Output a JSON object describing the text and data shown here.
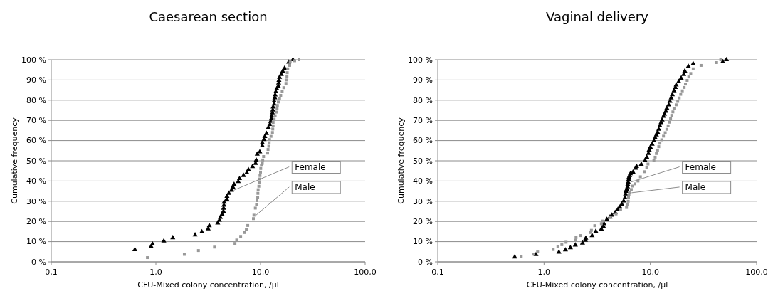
{
  "chart_data": [
    {
      "type": "scatter",
      "title": "Caesarean section",
      "xlabel": "CFU-Mixed colony concentration, /µl",
      "ylabel": "Cumulative frequency",
      "log": "x",
      "grid": "y",
      "legend": false,
      "xlim": [
        0.1,
        100
      ],
      "xticks": [
        {
          "value": 0.1,
          "label": "0,1"
        },
        {
          "value": 1,
          "label": "1,0"
        },
        {
          "value": 10,
          "label": "10,0"
        },
        {
          "value": 100,
          "label": "100,0"
        }
      ],
      "ylim": [
        0,
        100
      ],
      "yticks": [
        {
          "value": 0,
          "label": "0 %"
        },
        {
          "value": 10,
          "label": "10 %"
        },
        {
          "value": 20,
          "label": "20 %"
        },
        {
          "value": 30,
          "label": "30 %"
        },
        {
          "value": 40,
          "label": "40 %"
        },
        {
          "value": 50,
          "label": "50 %"
        },
        {
          "value": 60,
          "label": "60 %"
        },
        {
          "value": 70,
          "label": "70 %"
        },
        {
          "value": 80,
          "label": "80 %"
        },
        {
          "value": 90,
          "label": "90 %"
        },
        {
          "value": 100,
          "label": "100 %"
        }
      ],
      "series": [
        {
          "name": "Female",
          "color": "#000000",
          "marker": "triangle",
          "x": [
            0.63,
            0.9,
            0.93,
            1.19,
            1.45,
            2.37,
            2.75,
            3.16,
            3.24,
            3.9,
            4.05,
            4.13,
            4.29,
            4.42,
            4.44,
            4.47,
            4.49,
            4.76,
            4.78,
            4.98,
            5.28,
            5.44,
            5.59,
            6.13,
            6.3,
            6.88,
            7.4,
            7.67,
            8.38,
            8.97,
            9.1,
            9.3,
            9.84,
            10.4,
            10.4,
            10.8,
            11.0,
            11.4,
            11.9,
            12.3,
            12.5,
            12.7,
            12.8,
            13.0,
            13.1,
            13.2,
            13.5,
            13.5,
            13.7,
            13.8,
            14.0,
            14.3,
            14.8,
            14.9,
            15.0,
            15.2,
            15.8,
            16.3,
            17.0,
            18.6,
            20.4
          ],
          "values": [
            6.0,
            7.6,
            8.8,
            10.3,
            11.9,
            13.3,
            14.8,
            16.3,
            17.9,
            19.2,
            20.6,
            22.0,
            23.5,
            25.0,
            26.5,
            28.0,
            29.5,
            31.0,
            32.4,
            33.9,
            35.4,
            37.0,
            38.3,
            39.7,
            41.2,
            42.7,
            44.1,
            45.6,
            47.1,
            48.7,
            50.3,
            53.3,
            54.4,
            57.4,
            58.9,
            60.5,
            62.0,
            63.5,
            66.5,
            68.0,
            69.5,
            70.9,
            72.2,
            73.7,
            75.1,
            76.6,
            78.1,
            79.6,
            81.2,
            82.6,
            84.2,
            85.7,
            86.9,
            88.5,
            89.8,
            91.3,
            92.7,
            94.3,
            95.8,
            98.8,
            100
          ]
        },
        {
          "name": "Male",
          "color": "#999999",
          "marker": "square",
          "x": [
            0.83,
            1.87,
            2.55,
            3.63,
            5.7,
            5.92,
            6.46,
            7.02,
            7.32,
            7.55,
            8.55,
            8.65,
            8.92,
            9.16,
            9.25,
            9.4,
            9.44,
            9.49,
            9.64,
            9.74,
            9.84,
            9.89,
            10.0,
            10.05,
            10.2,
            10.4,
            10.5,
            10.7,
            11.7,
            11.8,
            12.0,
            12.1,
            12.2,
            12.6,
            13.0,
            13.1,
            13.2,
            13.2,
            13.5,
            13.8,
            14.2,
            14.4,
            14.5,
            14.8,
            15.2,
            15.6,
            16.1,
            16.7,
            17.5,
            17.7,
            17.9,
            18.0,
            18.2,
            19.0,
            19.2,
            21.2,
            23.3
          ],
          "values": [
            2.1,
            3.7,
            5.6,
            7.3,
            9.1,
            10.8,
            12.6,
            14.5,
            16.2,
            18.0,
            21.4,
            23.1,
            26.6,
            28.5,
            30.3,
            32.0,
            33.9,
            35.7,
            37.4,
            39.2,
            41.0,
            42.7,
            44.4,
            46.2,
            47.8,
            48.7,
            50.4,
            52.1,
            53.8,
            55.6,
            57.2,
            58.9,
            60.5,
            62.1,
            64.0,
            65.7,
            67.3,
            69.0,
            70.6,
            72.3,
            74.1,
            75.8,
            77.4,
            79.1,
            80.7,
            82.4,
            84.2,
            86.2,
            88.3,
            90.0,
            91.7,
            93.6,
            95.5,
            97.2,
            98.9,
            99.5,
            100
          ]
        }
      ]
    },
    {
      "type": "scatter",
      "title": "Vaginal delivery",
      "xlabel": "CFU-Mixed colony concentration, /µl",
      "ylabel": "Cumulative frequency",
      "log": "x",
      "grid": "y",
      "legend": false,
      "xlim": [
        0.1,
        100
      ],
      "xticks": [
        {
          "value": 0.1,
          "label": "0,1"
        },
        {
          "value": 1,
          "label": "1,0"
        },
        {
          "value": 10,
          "label": "10,0"
        },
        {
          "value": 100,
          "label": "100,0"
        }
      ],
      "ylim": [
        0,
        100
      ],
      "yticks": [
        {
          "value": 0,
          "label": "0 %"
        },
        {
          "value": 10,
          "label": "10 %"
        },
        {
          "value": 20,
          "label": "20 %"
        },
        {
          "value": 30,
          "label": "30 %"
        },
        {
          "value": 40,
          "label": "40 %"
        },
        {
          "value": 50,
          "label": "50 %"
        },
        {
          "value": 60,
          "label": "60 %"
        },
        {
          "value": 70,
          "label": "70 %"
        },
        {
          "value": 80,
          "label": "80 %"
        },
        {
          "value": 90,
          "label": "90 %"
        },
        {
          "value": 100,
          "label": "100 %"
        }
      ],
      "series": [
        {
          "name": "Female",
          "color": "#000000",
          "marker": "triangle",
          "x": [
            0.53,
            0.84,
            1.38,
            1.59,
            1.77,
            1.97,
            2.3,
            2.45,
            2.47,
            2.83,
            3.07,
            3.46,
            3.61,
            3.66,
            3.9,
            4.17,
            4.34,
            4.67,
            4.96,
            5.17,
            5.39,
            5.61,
            5.77,
            5.85,
            5.91,
            6.01,
            6.1,
            6.13,
            6.19,
            6.26,
            6.29,
            6.39,
            6.49,
            6.87,
            7.31,
            7.42,
            8.22,
            8.93,
            9.25,
            9.6,
            9.75,
            10.0,
            10.4,
            10.8,
            11.1,
            11.4,
            11.7,
            12.0,
            12.3,
            12.6,
            12.9,
            13.3,
            13.6,
            14.0,
            14.3,
            14.9,
            15.3,
            15.7,
            16.1,
            16.7,
            17.2,
            17.5,
            18.5,
            19.5,
            20.6,
            21.1,
            22.8,
            25.3,
            48,
            52
          ],
          "values": [
            2.4,
            3.6,
            4.8,
            5.9,
            7.0,
            8.3,
            9.3,
            10.7,
            11.7,
            13.0,
            15.1,
            16.2,
            17.6,
            18.9,
            21.0,
            22.1,
            23.1,
            24.4,
            26.0,
            27.1,
            28.5,
            30.1,
            31.7,
            33.6,
            34.9,
            35.9,
            37.1,
            38.3,
            39.4,
            40.8,
            41.8,
            42.7,
            43.6,
            44.4,
            46.3,
            47.2,
            48.3,
            50.1,
            51.8,
            53.6,
            55.3,
            56.7,
            58.2,
            59.9,
            61.4,
            62.8,
            64.1,
            65.6,
            67.3,
            68.9,
            70.2,
            72.0,
            73.1,
            74.5,
            76.0,
            77.7,
            79.4,
            81.1,
            82.7,
            84.6,
            86.3,
            87.5,
            89.2,
            90.9,
            92.7,
            94.4,
            96.7,
            98.0,
            99,
            100
          ]
        },
        {
          "name": "Male",
          "color": "#999999",
          "marker": "square",
          "x": [
            0.61,
            0.79,
            0.87,
            1.22,
            1.35,
            1.47,
            1.61,
            1.97,
            2.0,
            2.21,
            2.73,
            2.79,
            3.0,
            3.46,
            3.53,
            4.17,
            4.76,
            5.25,
            5.97,
            6.04,
            6.19,
            6.23,
            6.29,
            6.36,
            6.62,
            6.8,
            7.16,
            7.65,
            8.06,
            8.75,
            9.26,
            9.5,
            10.8,
            11.1,
            11.4,
            11.7,
            12.0,
            12.3,
            12.8,
            13.3,
            13.8,
            14.3,
            14.7,
            15.1,
            15.5,
            15.9,
            16.3,
            16.7,
            17.5,
            18.1,
            18.7,
            19.3,
            20.0,
            20.8,
            21.4,
            22.2,
            23.0,
            24.0,
            25.3,
            30,
            42,
            46
          ],
          "values": [
            2.6,
            3.8,
            4.9,
            6.1,
            7.4,
            8.5,
            9.7,
            10.7,
            12.0,
            13.0,
            14.5,
            15.6,
            17.9,
            18.9,
            20.2,
            22.0,
            23.7,
            25.8,
            26.9,
            28.3,
            30.0,
            31.7,
            33.1,
            34.2,
            35.8,
            37.5,
            38.6,
            40.0,
            42.1,
            44.6,
            46.7,
            48.4,
            50.1,
            51.8,
            53.6,
            55.3,
            57.0,
            58.7,
            60.4,
            62.2,
            63.9,
            65.6,
            67.3,
            69.1,
            70.8,
            72.5,
            74.2,
            76.0,
            77.7,
            79.4,
            81.1,
            82.9,
            84.6,
            86.3,
            88.0,
            89.8,
            91.5,
            93.2,
            95.5,
            97.2,
            98.6,
            100
          ]
        }
      ]
    }
  ]
}
